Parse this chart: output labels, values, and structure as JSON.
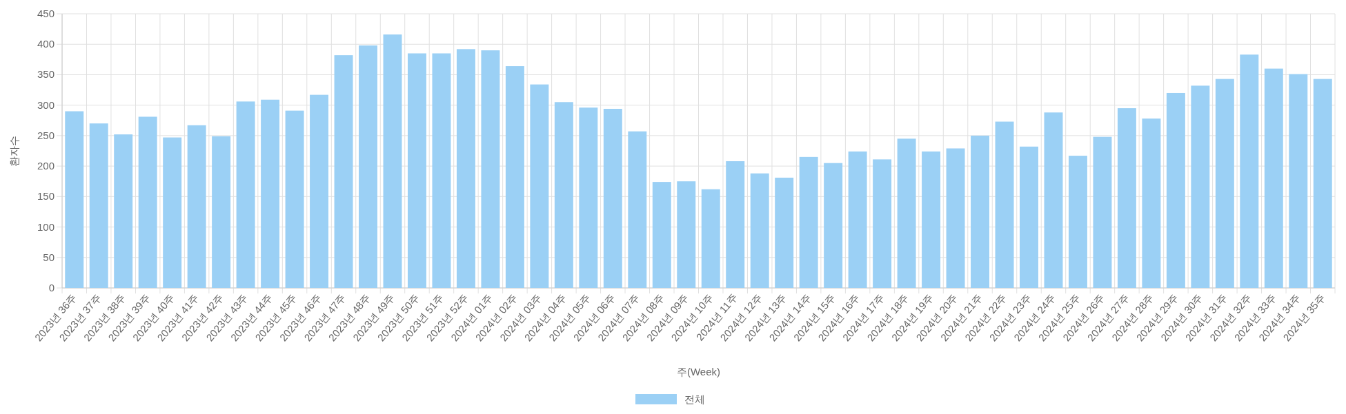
{
  "chart_data": {
    "type": "bar",
    "xlabel": "주(Week)",
    "ylabel": "환자수",
    "categories": [
      "2023년 36주",
      "2023년 37주",
      "2023년 38주",
      "2023년 39주",
      "2023년 40주",
      "2023년 41주",
      "2023년 42주",
      "2023년 43주",
      "2023년 44주",
      "2023년 45주",
      "2023년 46주",
      "2023년 47주",
      "2023년 48주",
      "2023년 49주",
      "2023년 50주",
      "2023년 51주",
      "2023년 52주",
      "2024년 01주",
      "2024년 02주",
      "2024년 03주",
      "2024년 04주",
      "2024년 05주",
      "2024년 06주",
      "2024년 07주",
      "2024년 08주",
      "2024년 09주",
      "2024년 10주",
      "2024년 11주",
      "2024년 12주",
      "2024년 13주",
      "2024년 14주",
      "2024년 15주",
      "2024년 16주",
      "2024년 17주",
      "2024년 18주",
      "2024년 19주",
      "2024년 20주",
      "2024년 21주",
      "2024년 22주",
      "2024년 23주",
      "2024년 24주",
      "2024년 25주",
      "2024년 26주",
      "2024년 27주",
      "2024년 28주",
      "2024년 29주",
      "2024년 30주",
      "2024년 31주",
      "2024년 32주",
      "2024년 33주",
      "2024년 34주",
      "2024년 35주"
    ],
    "series": [
      {
        "name": "전체",
        "color": "#9bd0f5",
        "values": [
          290,
          270,
          252,
          281,
          247,
          267,
          249,
          306,
          309,
          291,
          317,
          382,
          398,
          416,
          385,
          385,
          392,
          390,
          364,
          334,
          305,
          296,
          294,
          257,
          174,
          175,
          162,
          208,
          188,
          181,
          215,
          205,
          224,
          211,
          245,
          224,
          229,
          250,
          273,
          232,
          288,
          217,
          248,
          295,
          278,
          320,
          332,
          343,
          383,
          360,
          351,
          343
        ]
      }
    ],
    "ylim": [
      0,
      450
    ],
    "yticks": [
      0,
      50,
      100,
      150,
      200,
      250,
      300,
      350,
      400,
      450
    ],
    "grid": true,
    "legend": "bottom"
  }
}
